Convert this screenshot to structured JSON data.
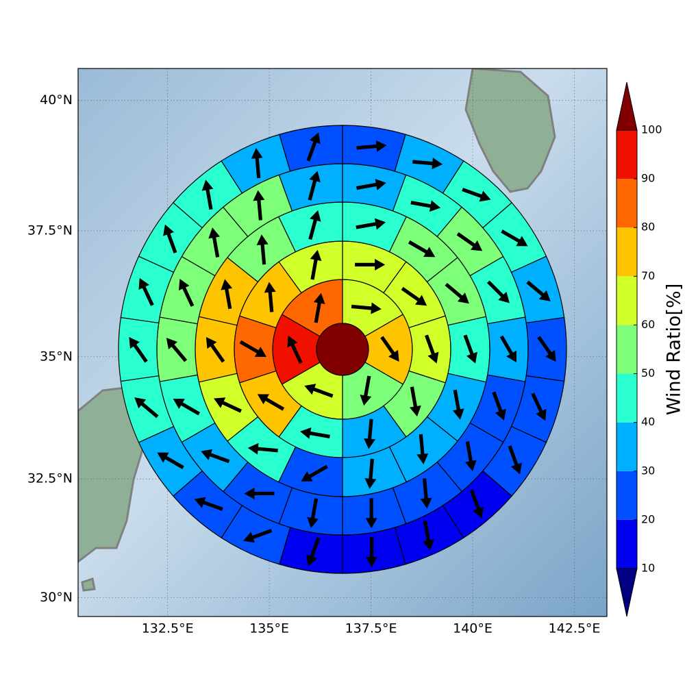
{
  "chart_data": {
    "type": "polar-sectors",
    "xlim": [
      130.3,
      143.3
    ],
    "ylim": [
      29.6,
      40.6
    ],
    "xticks": [
      {
        "value": 132.5,
        "label": "132.5°E"
      },
      {
        "value": 135,
        "label": "135°E"
      },
      {
        "value": 137.5,
        "label": "137.5°E"
      },
      {
        "value": 140,
        "label": "140°E"
      },
      {
        "value": 142.5,
        "label": "142.5°E"
      }
    ],
    "yticks": [
      {
        "value": 30,
        "label": "30°N"
      },
      {
        "value": 32.5,
        "label": "32.5°N"
      },
      {
        "value": 35,
        "label": "35°N"
      },
      {
        "value": 37.5,
        "label": "37.5°N"
      },
      {
        "value": 40,
        "label": "40°N"
      }
    ],
    "grid": true,
    "colorbar": {
      "label": "Wind Ratio[%]",
      "levels": [
        10,
        20,
        30,
        40,
        50,
        60,
        70,
        80,
        90,
        100
      ],
      "colors": [
        "#0000f0",
        "#0050ff",
        "#00b0ff",
        "#2affd0",
        "#7dff7a",
        "#d0ff2a",
        "#ffc400",
        "#ff6800",
        "#f01000"
      ],
      "under": "#000080",
      "over": "#800000"
    },
    "center": {
      "value": 105
    },
    "rings": [
      {
        "values": [
          65,
          75,
          55,
          65,
          95,
          85
        ],
        "directions": [
          -5,
          -55,
          -100,
          160,
          115,
          80
        ]
      },
      {
        "values": [
          65,
          65,
          65,
          55,
          35,
          45,
          75,
          85,
          75,
          65
        ],
        "directions": [
          0,
          -35,
          -70,
          -80,
          -95,
          170,
          150,
          -30,
          95,
          80
        ]
      },
      {
        "values": [
          45,
          55,
          55,
          45,
          35,
          35,
          35,
          25,
          45,
          65,
          75,
          75,
          55,
          45
        ],
        "directions": [
          10,
          -30,
          -40,
          -70,
          -80,
          -85,
          -95,
          -150,
          175,
          155,
          125,
          100,
          95,
          75
        ]
      },
      {
        "values": [
          35,
          45,
          55,
          45,
          35,
          25,
          25,
          25,
          25,
          25,
          25,
          35,
          45,
          55,
          55,
          55,
          55,
          35
        ],
        "directions": [
          10,
          -10,
          -35,
          -45,
          -60,
          -70,
          -80,
          -85,
          -90,
          -100,
          180,
          160,
          150,
          130,
          115,
          100,
          95,
          75
        ]
      },
      {
        "values": [
          25,
          35,
          45,
          45,
          35,
          25,
          25,
          25,
          15,
          15,
          15,
          15,
          25,
          25,
          35,
          45,
          45,
          45,
          45,
          45,
          35,
          25
        ],
        "directions": [
          5,
          -5,
          -20,
          -30,
          -40,
          -55,
          -65,
          -70,
          -70,
          -80,
          -90,
          -110,
          -160,
          160,
          150,
          140,
          125,
          115,
          110,
          100,
          95,
          70
        ]
      }
    ]
  }
}
